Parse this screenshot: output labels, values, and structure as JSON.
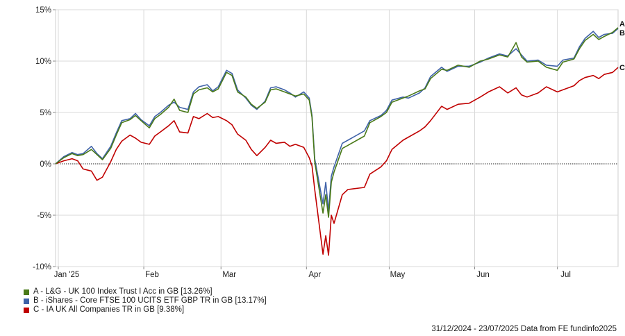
{
  "chart_data": {
    "type": "line",
    "ylim": [
      -10,
      15
    ],
    "y_ticks": [
      -10,
      -5,
      0,
      5,
      10,
      15
    ],
    "y_tick_labels": [
      "-10%",
      "-5%",
      "0%",
      "5%",
      "10%",
      "15%"
    ],
    "x_tick_labels": [
      "Jan '25",
      "Feb",
      "Mar",
      "Apr",
      "May",
      "Jun",
      "Jul"
    ],
    "x_tick_dates": [
      "2025-01-01",
      "2025-02-01",
      "2025-03-01",
      "2025-04-01",
      "2025-05-01",
      "2025-06-01",
      "2025-07-01"
    ],
    "x_range": [
      "2024-12-31",
      "2025-07-23"
    ],
    "zero_line": "dotted",
    "series": [
      {
        "label": "A",
        "name": "A - L&G - UK 100 Index Trust I Acc in GB [13.26%]",
        "color": "#4a7a19",
        "final": 13.26,
        "points": [
          [
            "2024-12-31",
            0
          ],
          [
            "2025-01-03",
            0.6
          ],
          [
            "2025-01-06",
            1.0
          ],
          [
            "2025-01-08",
            0.8
          ],
          [
            "2025-01-10",
            0.9
          ],
          [
            "2025-01-13",
            1.4
          ],
          [
            "2025-01-15",
            0.9
          ],
          [
            "2025-01-17",
            0.4
          ],
          [
            "2025-01-20",
            1.5
          ],
          [
            "2025-01-22",
            2.8
          ],
          [
            "2025-01-24",
            4.0
          ],
          [
            "2025-01-27",
            4.3
          ],
          [
            "2025-01-29",
            4.7
          ],
          [
            "2025-01-31",
            4.2
          ],
          [
            "2025-02-03",
            3.5
          ],
          [
            "2025-02-05",
            4.4
          ],
          [
            "2025-02-07",
            4.8
          ],
          [
            "2025-02-10",
            5.5
          ],
          [
            "2025-02-12",
            6.3
          ],
          [
            "2025-02-14",
            5.2
          ],
          [
            "2025-02-17",
            5.0
          ],
          [
            "2025-02-19",
            6.8
          ],
          [
            "2025-02-21",
            7.2
          ],
          [
            "2025-02-24",
            7.4
          ],
          [
            "2025-02-26",
            7.0
          ],
          [
            "2025-02-28",
            7.3
          ],
          [
            "2025-03-03",
            8.9
          ],
          [
            "2025-03-05",
            8.6
          ],
          [
            "2025-03-07",
            7.0
          ],
          [
            "2025-03-10",
            6.5
          ],
          [
            "2025-03-12",
            5.8
          ],
          [
            "2025-03-14",
            5.4
          ],
          [
            "2025-03-17",
            6.0
          ],
          [
            "2025-03-19",
            7.2
          ],
          [
            "2025-03-21",
            7.3
          ],
          [
            "2025-03-24",
            7.0
          ],
          [
            "2025-03-26",
            6.8
          ],
          [
            "2025-03-28",
            6.6
          ],
          [
            "2025-03-31",
            6.8
          ],
          [
            "2025-04-02",
            6.2
          ],
          [
            "2025-04-03",
            4.5
          ],
          [
            "2025-04-04",
            0.2
          ],
          [
            "2025-04-07",
            -4.8
          ],
          [
            "2025-04-08",
            -3.0
          ],
          [
            "2025-04-09",
            -5.2
          ],
          [
            "2025-04-10",
            -1.8
          ],
          [
            "2025-04-11",
            -0.8
          ],
          [
            "2025-04-14",
            1.5
          ],
          [
            "2025-04-16",
            1.8
          ],
          [
            "2025-04-22",
            2.7
          ],
          [
            "2025-04-24",
            4.0
          ],
          [
            "2025-04-28",
            4.6
          ],
          [
            "2025-04-30",
            5.0
          ],
          [
            "2025-05-02",
            6.0
          ],
          [
            "2025-05-06",
            6.4
          ],
          [
            "2025-05-08",
            6.6
          ],
          [
            "2025-05-12",
            7.1
          ],
          [
            "2025-05-14",
            7.3
          ],
          [
            "2025-05-16",
            8.3
          ],
          [
            "2025-05-20",
            9.2
          ],
          [
            "2025-05-22",
            9.1
          ],
          [
            "2025-05-26",
            9.6
          ],
          [
            "2025-05-30",
            9.4
          ],
          [
            "2025-06-03",
            10.0
          ],
          [
            "2025-06-06",
            10.2
          ],
          [
            "2025-06-10",
            10.6
          ],
          [
            "2025-06-13",
            10.4
          ],
          [
            "2025-06-16",
            11.8
          ],
          [
            "2025-06-18",
            10.4
          ],
          [
            "2025-06-20",
            9.9
          ],
          [
            "2025-06-24",
            10.0
          ],
          [
            "2025-06-27",
            9.4
          ],
          [
            "2025-07-01",
            9.1
          ],
          [
            "2025-07-03",
            9.9
          ],
          [
            "2025-07-07",
            10.2
          ],
          [
            "2025-07-09",
            11.2
          ],
          [
            "2025-07-11",
            12.0
          ],
          [
            "2025-07-14",
            12.6
          ],
          [
            "2025-07-16",
            12.1
          ],
          [
            "2025-07-18",
            12.4
          ],
          [
            "2025-07-21",
            12.8
          ],
          [
            "2025-07-23",
            13.26
          ]
        ]
      },
      {
        "label": "B",
        "name": "B - iShares - Core FTSE 100 UCITS ETF GBP TR in GB [13.17%]",
        "color": "#3f62a8",
        "final": 13.17,
        "points": [
          [
            "2024-12-31",
            0
          ],
          [
            "2025-01-03",
            0.7
          ],
          [
            "2025-01-06",
            1.1
          ],
          [
            "2025-01-08",
            0.9
          ],
          [
            "2025-01-10",
            1.0
          ],
          [
            "2025-01-13",
            1.7
          ],
          [
            "2025-01-15",
            1.0
          ],
          [
            "2025-01-17",
            0.5
          ],
          [
            "2025-01-20",
            1.7
          ],
          [
            "2025-01-22",
            3.0
          ],
          [
            "2025-01-24",
            4.2
          ],
          [
            "2025-01-27",
            4.4
          ],
          [
            "2025-01-29",
            4.9
          ],
          [
            "2025-01-31",
            4.3
          ],
          [
            "2025-02-03",
            3.7
          ],
          [
            "2025-02-05",
            4.6
          ],
          [
            "2025-02-07",
            5.0
          ],
          [
            "2025-02-10",
            5.7
          ],
          [
            "2025-02-12",
            6.0
          ],
          [
            "2025-02-14",
            5.5
          ],
          [
            "2025-02-17",
            5.3
          ],
          [
            "2025-02-19",
            7.0
          ],
          [
            "2025-02-21",
            7.5
          ],
          [
            "2025-02-24",
            7.7
          ],
          [
            "2025-02-26",
            7.1
          ],
          [
            "2025-02-28",
            7.5
          ],
          [
            "2025-03-03",
            9.1
          ],
          [
            "2025-03-05",
            8.8
          ],
          [
            "2025-03-07",
            7.2
          ],
          [
            "2025-03-10",
            6.4
          ],
          [
            "2025-03-12",
            5.7
          ],
          [
            "2025-03-14",
            5.3
          ],
          [
            "2025-03-17",
            6.1
          ],
          [
            "2025-03-19",
            7.4
          ],
          [
            "2025-03-21",
            7.5
          ],
          [
            "2025-03-24",
            7.2
          ],
          [
            "2025-03-26",
            6.9
          ],
          [
            "2025-03-28",
            6.5
          ],
          [
            "2025-03-31",
            7.0
          ],
          [
            "2025-04-02",
            6.4
          ],
          [
            "2025-04-03",
            4.7
          ],
          [
            "2025-04-04",
            0.5
          ],
          [
            "2025-04-07",
            -3.9
          ],
          [
            "2025-04-08",
            -1.8
          ],
          [
            "2025-04-09",
            -4.6
          ],
          [
            "2025-04-10",
            -1.2
          ],
          [
            "2025-04-11",
            -0.3
          ],
          [
            "2025-04-14",
            2.0
          ],
          [
            "2025-04-16",
            2.3
          ],
          [
            "2025-04-22",
            3.2
          ],
          [
            "2025-04-24",
            4.2
          ],
          [
            "2025-04-28",
            4.7
          ],
          [
            "2025-04-30",
            5.2
          ],
          [
            "2025-05-02",
            6.2
          ],
          [
            "2025-05-06",
            6.5
          ],
          [
            "2025-05-08",
            6.4
          ],
          [
            "2025-05-12",
            6.9
          ],
          [
            "2025-05-14",
            7.4
          ],
          [
            "2025-05-16",
            8.5
          ],
          [
            "2025-05-20",
            9.4
          ],
          [
            "2025-05-22",
            9.0
          ],
          [
            "2025-05-26",
            9.5
          ],
          [
            "2025-05-30",
            9.5
          ],
          [
            "2025-06-03",
            9.9
          ],
          [
            "2025-06-06",
            10.3
          ],
          [
            "2025-06-10",
            10.7
          ],
          [
            "2025-06-13",
            10.5
          ],
          [
            "2025-06-16",
            11.2
          ],
          [
            "2025-06-18",
            10.6
          ],
          [
            "2025-06-20",
            10.0
          ],
          [
            "2025-06-24",
            10.1
          ],
          [
            "2025-06-27",
            9.6
          ],
          [
            "2025-07-01",
            9.5
          ],
          [
            "2025-07-03",
            10.1
          ],
          [
            "2025-07-07",
            10.3
          ],
          [
            "2025-07-09",
            11.4
          ],
          [
            "2025-07-11",
            12.2
          ],
          [
            "2025-07-14",
            12.9
          ],
          [
            "2025-07-16",
            12.3
          ],
          [
            "2025-07-18",
            12.6
          ],
          [
            "2025-07-21",
            12.7
          ],
          [
            "2025-07-23",
            13.17
          ]
        ]
      },
      {
        "label": "C",
        "name": "C - IA UK All Companies TR in GB [9.38%]",
        "color": "#c00000",
        "final": 9.38,
        "points": [
          [
            "2024-12-31",
            0
          ],
          [
            "2025-01-03",
            0.3
          ],
          [
            "2025-01-06",
            0.5
          ],
          [
            "2025-01-08",
            0.3
          ],
          [
            "2025-01-10",
            -0.5
          ],
          [
            "2025-01-13",
            -0.7
          ],
          [
            "2025-01-15",
            -1.6
          ],
          [
            "2025-01-17",
            -1.3
          ],
          [
            "2025-01-20",
            0.2
          ],
          [
            "2025-01-22",
            1.4
          ],
          [
            "2025-01-24",
            2.2
          ],
          [
            "2025-01-27",
            2.8
          ],
          [
            "2025-01-29",
            2.5
          ],
          [
            "2025-01-31",
            2.1
          ],
          [
            "2025-02-03",
            1.9
          ],
          [
            "2025-02-05",
            2.7
          ],
          [
            "2025-02-07",
            3.1
          ],
          [
            "2025-02-10",
            3.7
          ],
          [
            "2025-02-12",
            4.2
          ],
          [
            "2025-02-14",
            3.1
          ],
          [
            "2025-02-17",
            3.0
          ],
          [
            "2025-02-19",
            4.6
          ],
          [
            "2025-02-21",
            4.4
          ],
          [
            "2025-02-24",
            4.9
          ],
          [
            "2025-02-26",
            4.5
          ],
          [
            "2025-02-28",
            4.6
          ],
          [
            "2025-03-03",
            4.2
          ],
          [
            "2025-03-05",
            3.8
          ],
          [
            "2025-03-07",
            2.9
          ],
          [
            "2025-03-10",
            2.3
          ],
          [
            "2025-03-12",
            1.4
          ],
          [
            "2025-03-14",
            0.8
          ],
          [
            "2025-03-17",
            1.6
          ],
          [
            "2025-03-19",
            2.3
          ],
          [
            "2025-03-21",
            2.0
          ],
          [
            "2025-03-24",
            2.1
          ],
          [
            "2025-03-26",
            1.7
          ],
          [
            "2025-03-28",
            1.9
          ],
          [
            "2025-03-31",
            1.6
          ],
          [
            "2025-04-02",
            0.6
          ],
          [
            "2025-04-03",
            -0.2
          ],
          [
            "2025-04-04",
            -2.5
          ],
          [
            "2025-04-07",
            -8.8
          ],
          [
            "2025-04-08",
            -7.0
          ],
          [
            "2025-04-09",
            -8.9
          ],
          [
            "2025-04-10",
            -5.0
          ],
          [
            "2025-04-11",
            -5.8
          ],
          [
            "2025-04-14",
            -3.0
          ],
          [
            "2025-04-16",
            -2.5
          ],
          [
            "2025-04-22",
            -2.3
          ],
          [
            "2025-04-24",
            -1.0
          ],
          [
            "2025-04-28",
            -0.3
          ],
          [
            "2025-04-30",
            0.3
          ],
          [
            "2025-05-02",
            1.4
          ],
          [
            "2025-05-06",
            2.3
          ],
          [
            "2025-05-08",
            2.6
          ],
          [
            "2025-05-12",
            3.2
          ],
          [
            "2025-05-14",
            3.6
          ],
          [
            "2025-05-16",
            4.2
          ],
          [
            "2025-05-20",
            5.6
          ],
          [
            "2025-05-22",
            5.3
          ],
          [
            "2025-05-26",
            5.8
          ],
          [
            "2025-05-30",
            5.9
          ],
          [
            "2025-06-03",
            6.5
          ],
          [
            "2025-06-06",
            7.0
          ],
          [
            "2025-06-10",
            7.5
          ],
          [
            "2025-06-13",
            6.9
          ],
          [
            "2025-06-16",
            7.4
          ],
          [
            "2025-06-18",
            6.7
          ],
          [
            "2025-06-20",
            6.5
          ],
          [
            "2025-06-24",
            6.9
          ],
          [
            "2025-06-27",
            7.5
          ],
          [
            "2025-07-01",
            7.0
          ],
          [
            "2025-07-03",
            7.2
          ],
          [
            "2025-07-07",
            7.6
          ],
          [
            "2025-07-09",
            8.1
          ],
          [
            "2025-07-11",
            8.4
          ],
          [
            "2025-07-14",
            8.6
          ],
          [
            "2025-07-16",
            8.3
          ],
          [
            "2025-07-18",
            8.7
          ],
          [
            "2025-07-21",
            8.9
          ],
          [
            "2025-07-23",
            9.38
          ]
        ]
      }
    ]
  },
  "footer": {
    "text": "31/12/2024 - 23/07/2025 Data from FE fundinfo2025"
  }
}
